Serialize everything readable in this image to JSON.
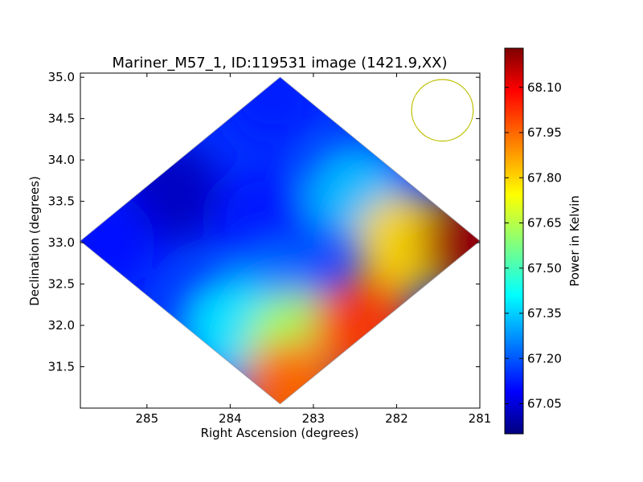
{
  "chart_data": {
    "type": "heatmap",
    "title": "Mariner_M57_1, ID:119531 image (1421.9,XX)",
    "xlabel": "Right Ascension (degrees)",
    "ylabel": "Declination (degrees)",
    "xlim": [
      285.8,
      281.0
    ],
    "ylim": [
      31.0,
      35.05
    ],
    "x_ticks": [
      285,
      284,
      283,
      282,
      281
    ],
    "x_tick_labels": [
      "285",
      "284",
      "283",
      "282",
      "281"
    ],
    "y_ticks": [
      31.5,
      32.0,
      32.5,
      33.0,
      33.5,
      34.0,
      34.5,
      35.0
    ],
    "y_tick_labels": [
      "31.5",
      "32.0",
      "32.5",
      "33.0",
      "33.5",
      "34.0",
      "34.5",
      "35.0"
    ],
    "colormap": "jet",
    "colorbar": {
      "label": "Power in Kelvin",
      "min": 66.95,
      "max": 68.23,
      "ticks": [
        67.05,
        67.2,
        67.35,
        67.5,
        67.65,
        67.8,
        67.95,
        68.1
      ],
      "tick_labels": [
        "67.05",
        "67.20",
        "67.35",
        "67.50",
        "67.65",
        "67.80",
        "67.95",
        "68.10"
      ]
    },
    "map_extent": {
      "ra_min": 281.0,
      "ra_max": 285.8,
      "dec_min": 31.05,
      "dec_max": 35.0,
      "center_ra": 283.4,
      "center_dec": 33.02,
      "shape": "diamond"
    },
    "samples": [
      {
        "ra": 284.7,
        "dec": 33.6,
        "value": 67.03
      },
      {
        "ra": 285.5,
        "dec": 33.0,
        "value": 67.12
      },
      {
        "ra": 283.5,
        "dec": 34.8,
        "value": 67.15
      },
      {
        "ra": 283.6,
        "dec": 33.3,
        "value": 67.14
      },
      {
        "ra": 283.4,
        "dec": 32.4,
        "value": 67.25
      },
      {
        "ra": 282.5,
        "dec": 33.6,
        "value": 67.35
      },
      {
        "ra": 284.0,
        "dec": 32.0,
        "value": 67.4
      },
      {
        "ra": 283.2,
        "dec": 31.8,
        "value": 67.65
      },
      {
        "ra": 281.9,
        "dec": 33.0,
        "value": 67.8
      },
      {
        "ra": 283.3,
        "dec": 31.2,
        "value": 67.95
      },
      {
        "ra": 281.1,
        "dec": 33.0,
        "value": 68.2
      },
      {
        "ra": 282.4,
        "dec": 32.0,
        "value": 68.0
      }
    ],
    "beam": {
      "ra": 281.45,
      "dec": 34.6,
      "radius_deg": 0.37,
      "color": "#bfbf00"
    }
  }
}
